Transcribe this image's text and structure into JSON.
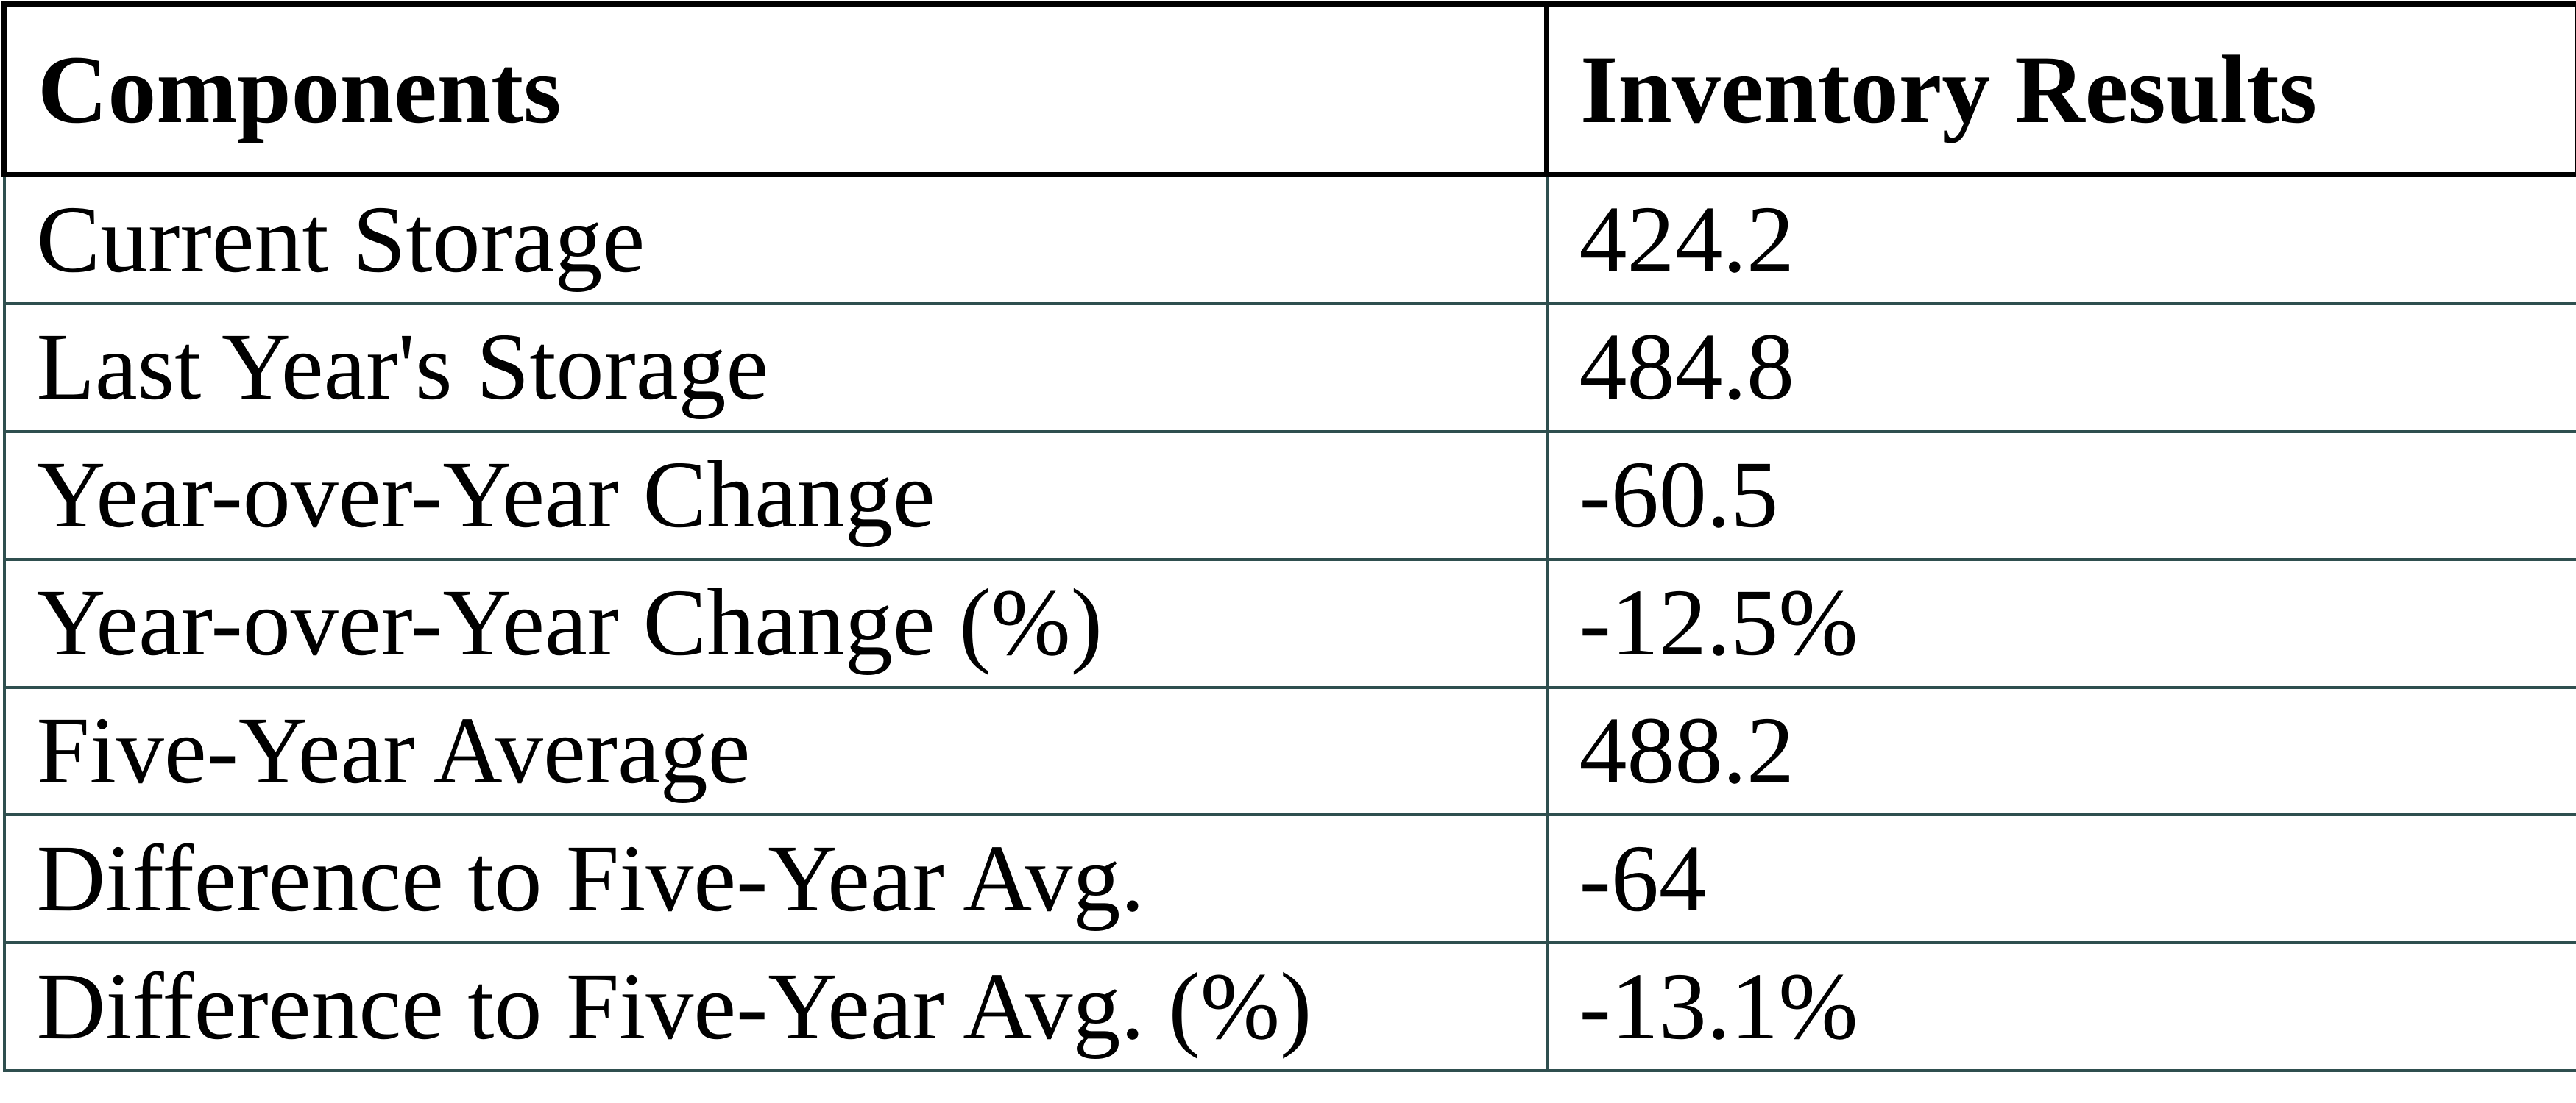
{
  "colors": {
    "background": "#ffffff",
    "text": "#000000",
    "header_border": "#000000",
    "cell_border": "#2f4f4f"
  },
  "table": {
    "columns": [
      {
        "label": "Components"
      },
      {
        "label": "Inventory Results"
      }
    ],
    "rows": [
      {
        "component": "Current Storage",
        "result": "424.2"
      },
      {
        "component": "Last Year's Storage",
        "result": "484.8"
      },
      {
        "component": "Year-over-Year Change",
        "result": "-60.5"
      },
      {
        "component": "Year-over-Year Change (%)",
        "result": "-12.5%"
      },
      {
        "component": "Five-Year Average",
        "result": "488.2"
      },
      {
        "component": "Difference to Five-Year Avg.",
        "result": "-64"
      },
      {
        "component": "Difference to Five-Year Avg. (%)",
        "result": "-13.1%"
      }
    ]
  },
  "chart_data": {
    "type": "table",
    "columns": [
      "Components",
      "Inventory Results"
    ],
    "rows": [
      [
        "Current Storage",
        "424.2"
      ],
      [
        "Last Year's Storage",
        "484.8"
      ],
      [
        "Year-over-Year Change",
        "-60.5"
      ],
      [
        "Year-over-Year Change (%)",
        "-12.5%"
      ],
      [
        "Five-Year Average",
        "488.2"
      ],
      [
        "Difference to Five-Year Avg.",
        "-64"
      ],
      [
        "Difference to Five-Year Avg. (%)",
        "-13.1%"
      ]
    ],
    "values": {
      "current_storage": 424.2,
      "last_year_storage": 484.8,
      "year_over_year_change": -60.5,
      "year_over_year_change_pct": -12.5,
      "five_year_average": 488.2,
      "difference_to_five_year_avg": -64,
      "difference_to_five_year_avg_pct": -13.1
    }
  }
}
